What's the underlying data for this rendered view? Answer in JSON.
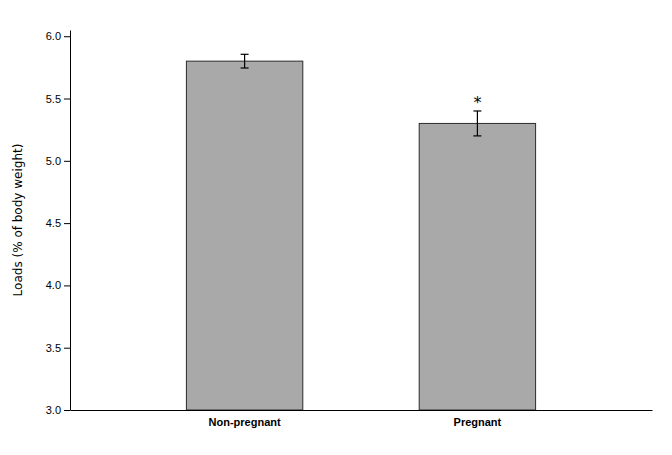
{
  "chart_data": {
    "type": "bar",
    "categories": [
      "Non-pregnant",
      "Pregnant"
    ],
    "values": [
      5.8,
      5.3
    ],
    "errors": [
      0.055,
      0.1
    ],
    "color": "#a9a9a9",
    "y_label": "Loads (% of body weight)",
    "ylim": [
      3.0,
      6.05
    ],
    "yticks": [
      {
        "value": 3.0,
        "label": "3.0"
      },
      3.5,
      {
        "value": 4.0,
        "label": "4.0"
      },
      4.5,
      {
        "value": 5.0,
        "label": "5.0"
      },
      5.5,
      {
        "value": 6.0,
        "label": "6.0"
      }
    ],
    "annotations": [
      {
        "text": "*",
        "x": "Pregnant"
      }
    ],
    "grid": false
  }
}
